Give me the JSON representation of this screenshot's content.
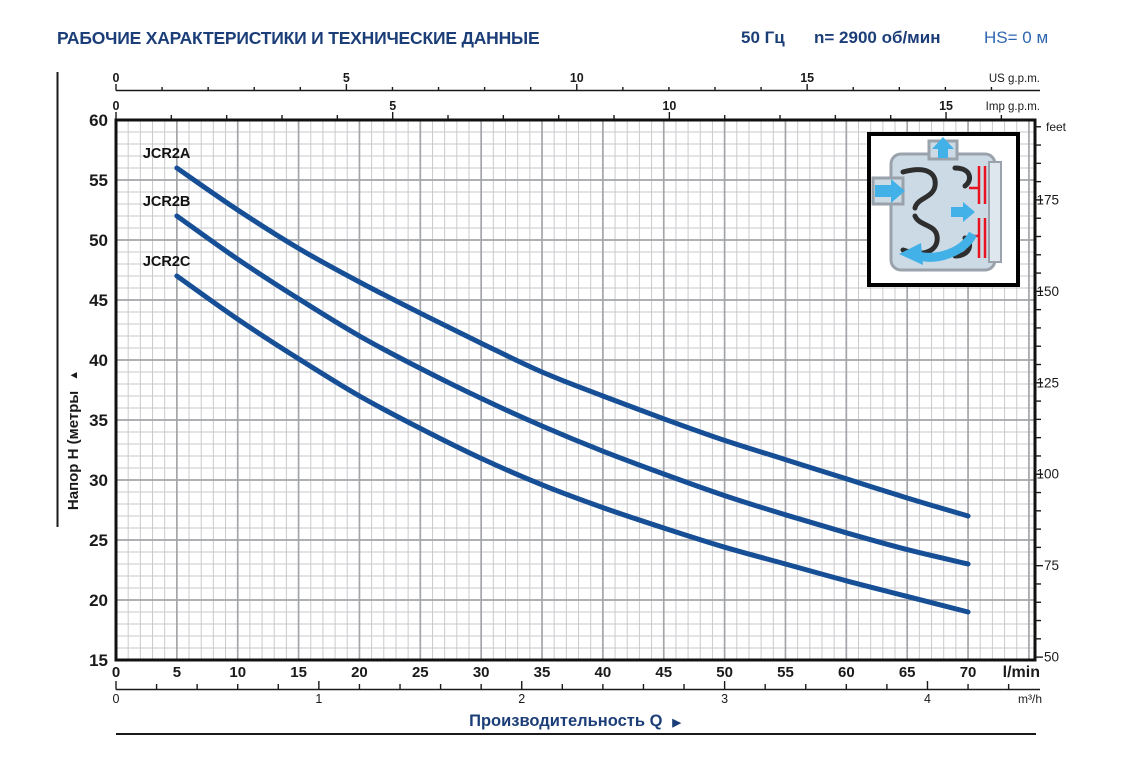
{
  "header": {
    "title": "РАБОЧИЕ ХАРАКТЕРИСТИКИ И ТЕХНИЧЕСКИЕ ДАННЫЕ",
    "frequency": "50 Гц",
    "speed": "n= 2900 об/мин",
    "suction": "HS= 0 м"
  },
  "chart_data": {
    "type": "line",
    "x_axis": {
      "unit": "l/min",
      "min": 0,
      "max": 75.5,
      "major_step": 5,
      "minor_step": 1,
      "tick_labels": [
        0,
        5,
        10,
        15,
        20,
        25,
        30,
        35,
        40,
        45,
        50,
        55,
        60,
        65,
        70
      ]
    },
    "x_axis_m3h": {
      "unit": "m³/h",
      "lmin_per_unit": 16.6667,
      "minor_step": 0.2,
      "major_step": 1,
      "tick_labels": [
        0,
        1,
        2,
        3,
        4
      ]
    },
    "x_axis_us_gpm": {
      "unit": "US g.p.m.",
      "lmin_per_unit": 3.78541,
      "minor_step": 1,
      "major_step": 5,
      "tick_labels": [
        0,
        5,
        10,
        15
      ]
    },
    "x_axis_imp_gpm": {
      "unit": "Imp g.p.m.",
      "lmin_per_unit": 4.54609,
      "minor_step": 1,
      "major_step": 5,
      "tick_labels": [
        0,
        5,
        10,
        15
      ]
    },
    "y_axis": {
      "label": "Напор H (метры",
      "arrow": "▲",
      "unit": "m",
      "min": 15,
      "max": 60,
      "major_step": 5,
      "minor_step": 1,
      "tick_labels": [
        60,
        55,
        50,
        45,
        40,
        35,
        30,
        25,
        20,
        15
      ]
    },
    "y_axis_feet": {
      "unit": "feet",
      "m_per_unit": 0.3048,
      "minor_step": 5,
      "label_step": 25,
      "tick_labels": [
        175,
        150,
        125,
        100,
        75,
        50
      ]
    },
    "xlabel": "Производительность Q",
    "xlabel_arrow": "▶",
    "series": [
      {
        "name": "JCR2A",
        "q_lmin": [
          5,
          10,
          15,
          20,
          25,
          30,
          35,
          40,
          45,
          50,
          55,
          60,
          65,
          70
        ],
        "h_m": [
          56,
          52.5,
          49.3,
          46.5,
          43.9,
          41.4,
          39.0,
          37.0,
          35.1,
          33.3,
          31.7,
          30.1,
          28.5,
          27
        ]
      },
      {
        "name": "JCR2B",
        "q_lmin": [
          5,
          10,
          15,
          20,
          25,
          30,
          35,
          40,
          45,
          50,
          55,
          60,
          65,
          70
        ],
        "h_m": [
          52,
          48.4,
          45.1,
          42.0,
          39.3,
          36.8,
          34.5,
          32.4,
          30.5,
          28.7,
          27.1,
          25.6,
          24.2,
          23
        ]
      },
      {
        "name": "JCR2C",
        "q_lmin": [
          5,
          10,
          15,
          20,
          25,
          30,
          35,
          40,
          45,
          50,
          55,
          60,
          65,
          70
        ],
        "h_m": [
          47,
          43.4,
          40.1,
          37.0,
          34.3,
          31.8,
          29.6,
          27.7,
          26.0,
          24.4,
          23.0,
          21.6,
          20.3,
          19
        ]
      }
    ],
    "style": {
      "curve_color": "#164f96",
      "grid_minor": "#c9cacc",
      "grid_major": "#a3a5a8",
      "axis_color": "#1a1a1a",
      "navy_label_color": "#1c3e78",
      "inset_body": "#ccdae6",
      "inset_casing": "#9aa2ab",
      "inset_flow": "#41b1e8",
      "inset_channel": "#2e2e2e",
      "inset_red": "#e8141f"
    }
  }
}
